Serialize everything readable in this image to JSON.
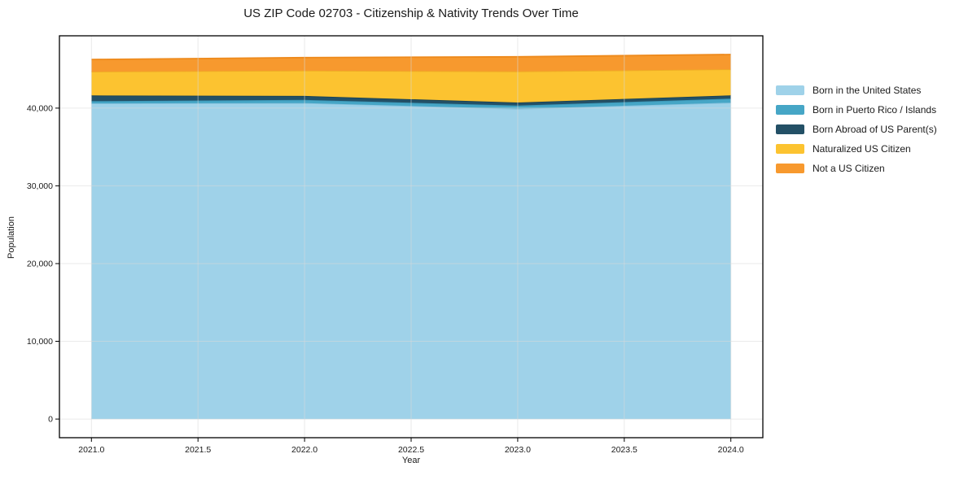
{
  "chart_data": {
    "type": "area",
    "stacked": true,
    "title": "US ZIP Code 02703 - Citizenship & Nativity Trends Over Time",
    "xlabel": "Year",
    "ylabel": "Population",
    "x": [
      2021,
      2022,
      2023,
      2024
    ],
    "xticks": [
      2021.0,
      2021.5,
      2022.0,
      2022.5,
      2023.0,
      2023.5,
      2024.0
    ],
    "xtick_labels": [
      "2021.0",
      "2021.5",
      "2022.0",
      "2022.5",
      "2023.0",
      "2023.5",
      "2024.0"
    ],
    "yticks": [
      0,
      10000,
      20000,
      30000,
      40000
    ],
    "ytick_labels": [
      "0",
      "10,000",
      "20,000",
      "30,000",
      "40,000"
    ],
    "xlim": [
      2020.85,
      2024.15
    ],
    "ylim": [
      -2400,
      49300
    ],
    "grid": true,
    "legend_position": "right",
    "series": [
      {
        "name": "Born in the United States",
        "color": "#9FD2E9",
        "edge_color": "#8AC3DE",
        "values": [
          40600,
          40650,
          39900,
          40700
        ]
      },
      {
        "name": "Born in Puerto Rico / Islands",
        "color": "#46A6C6",
        "edge_color": "#3B96B6",
        "values": [
          300,
          400,
          420,
          520
        ]
      },
      {
        "name": "Born Abroad of US Parent(s)",
        "color": "#235066",
        "edge_color": "#1B4254",
        "values": [
          730,
          520,
          400,
          420
        ]
      },
      {
        "name": "Naturalized US Citizen",
        "color": "#FCC330",
        "edge_color": "#EFAD25",
        "values": [
          3050,
          3250,
          4000,
          3350
        ]
      },
      {
        "name": "Not a US Citizen",
        "color": "#F7992E",
        "edge_color": "#EE8A1C",
        "values": [
          1570,
          1680,
          1880,
          1900
        ]
      }
    ]
  }
}
